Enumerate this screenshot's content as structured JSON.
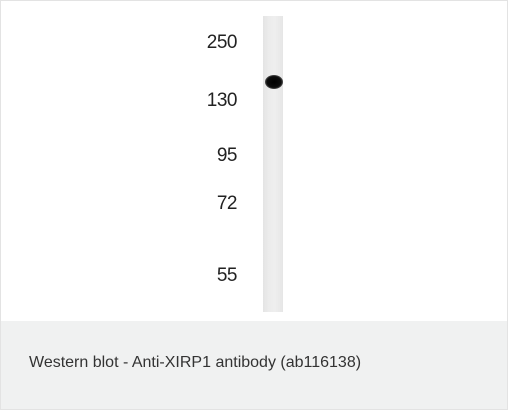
{
  "blot": {
    "markers": [
      {
        "label": "250"
      },
      {
        "label": "130"
      },
      {
        "label": "95"
      },
      {
        "label": "72"
      },
      {
        "label": "55"
      }
    ]
  },
  "caption": {
    "text": "Western blot - Anti-XIRP1 antibody (ab116138)"
  }
}
